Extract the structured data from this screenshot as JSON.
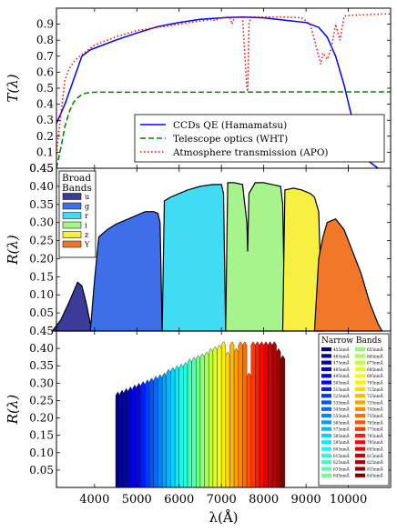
{
  "chart_data": [
    {
      "type": "line",
      "ylabel": "T(λ)",
      "yticks": [
        "0.1",
        "0.2",
        "0.3",
        "0.4",
        "0.5",
        "0.6",
        "0.7",
        "0.8",
        "0.9"
      ],
      "ylim": [
        0,
        1.0
      ],
      "xlim": [
        3100,
        11000
      ],
      "legend": "bottom-right",
      "series": [
        {
          "name": "CCDs QE (Hamamatsu)",
          "color": "#0000ff",
          "style": "solid",
          "x": [
            3100,
            3300,
            3500,
            3700,
            3900,
            4200,
            4500,
            5000,
            5500,
            6000,
            6500,
            7000,
            7500,
            8000,
            8500,
            9000,
            9300,
            9500,
            9700,
            9900,
            10100,
            10300,
            10500,
            10700
          ],
          "y": [
            0.28,
            0.4,
            0.55,
            0.7,
            0.74,
            0.77,
            0.8,
            0.845,
            0.885,
            0.91,
            0.93,
            0.94,
            0.945,
            0.94,
            0.925,
            0.91,
            0.88,
            0.82,
            0.7,
            0.52,
            0.3,
            0.13,
            0.04,
            0.0
          ]
        },
        {
          "name": "Telescope optics (WHT)",
          "color": "#008000",
          "style": "dashed",
          "x": [
            3100,
            3200,
            3300,
            3400,
            3500,
            3600,
            3700,
            3800,
            4000,
            5000,
            6000,
            7000,
            8000,
            9000,
            10000,
            11000
          ],
          "y": [
            0.0,
            0.12,
            0.26,
            0.35,
            0.41,
            0.44,
            0.46,
            0.47,
            0.475,
            0.475,
            0.475,
            0.475,
            0.476,
            0.477,
            0.477,
            0.477
          ]
        },
        {
          "name": "Atmosphere transmission (APO)",
          "color": "#ff0000",
          "style": "dotted",
          "x": [
            3100,
            3200,
            3300,
            3400,
            3500,
            3600,
            3800,
            4000,
            4500,
            5000,
            5500,
            6000,
            6500,
            6800,
            6860,
            6900,
            7000,
            7200,
            7250,
            7300,
            7500,
            7600,
            7620,
            7650,
            7700,
            8000,
            8500,
            8900,
            9100,
            9200,
            9300,
            9350,
            9400,
            9500,
            9600,
            9700,
            9800,
            9900,
            10000,
            10500,
            11000
          ],
          "y": [
            0.09,
            0.33,
            0.55,
            0.62,
            0.66,
            0.69,
            0.73,
            0.77,
            0.82,
            0.86,
            0.88,
            0.9,
            0.92,
            0.93,
            0.92,
            0.93,
            0.94,
            0.945,
            0.9,
            0.94,
            0.945,
            0.5,
            0.48,
            0.9,
            0.945,
            0.945,
            0.945,
            0.94,
            0.9,
            0.8,
            0.7,
            0.65,
            0.72,
            0.68,
            0.75,
            0.9,
            0.8,
            0.95,
            0.955,
            0.96,
            0.965
          ]
        }
      ]
    },
    {
      "type": "area",
      "ylabel": "R(λ)",
      "yticks": [
        "0.05",
        "0.10",
        "0.15",
        "0.20",
        "0.25",
        "0.30",
        "0.35",
        "0.40",
        "0.45"
      ],
      "ylim": [
        0,
        0.45
      ],
      "xlim": [
        3100,
        11000
      ],
      "legend_title": [
        "Broad",
        "Bands"
      ],
      "legend": "top-left",
      "series": [
        {
          "name": "u",
          "color": "#3b3b99",
          "x": [
            3000,
            3200,
            3400,
            3600,
            3700,
            3800,
            3900,
            4000
          ],
          "y": [
            0.0,
            0.03,
            0.08,
            0.135,
            0.125,
            0.08,
            0.02,
            0.0
          ]
        },
        {
          "name": "g",
          "color": "#3f6fe8",
          "x": [
            3900,
            4000,
            4100,
            4300,
            4500,
            4800,
            5000,
            5200,
            5400,
            5500,
            5550,
            5600
          ],
          "y": [
            0.0,
            0.14,
            0.26,
            0.28,
            0.295,
            0.31,
            0.32,
            0.33,
            0.33,
            0.325,
            0.3,
            0.0
          ]
        },
        {
          "name": "r",
          "color": "#40dcf4",
          "x": [
            5600,
            5650,
            5800,
            6000,
            6200,
            6500,
            6800,
            7000,
            7050,
            7100
          ],
          "y": [
            0.0,
            0.36,
            0.37,
            0.38,
            0.39,
            0.4,
            0.405,
            0.405,
            0.38,
            0.0
          ]
        },
        {
          "name": "i",
          "color": "#a8f48c",
          "x": [
            7100,
            7150,
            7300,
            7500,
            7600,
            7620,
            7650,
            7800,
            8000,
            8200,
            8400,
            8450,
            8500
          ],
          "y": [
            0.0,
            0.41,
            0.41,
            0.405,
            0.3,
            0.22,
            0.38,
            0.41,
            0.41,
            0.405,
            0.4,
            0.35,
            0.0
          ]
        },
        {
          "name": "z",
          "color": "#f8f040",
          "x": [
            8450,
            8500,
            8700,
            8900,
            9100,
            9200,
            9300,
            9350,
            9400
          ],
          "y": [
            0.0,
            0.39,
            0.395,
            0.39,
            0.38,
            0.37,
            0.33,
            0.15,
            0.0
          ]
        },
        {
          "name": "Y",
          "color": "#f07828",
          "x": [
            9200,
            9300,
            9400,
            9500,
            9700,
            9900,
            10100,
            10300,
            10500,
            10700,
            10800
          ],
          "y": [
            0.0,
            0.2,
            0.26,
            0.3,
            0.31,
            0.28,
            0.22,
            0.16,
            0.08,
            0.02,
            0.0
          ]
        }
      ]
    },
    {
      "type": "area",
      "ylabel": "R(λ)",
      "yticks": [
        "0.05",
        "0.10",
        "0.15",
        "0.20",
        "0.25",
        "0.30",
        "0.35",
        "0.40"
      ],
      "ylim": [
        0,
        0.45
      ],
      "xlim": [
        3100,
        11000
      ],
      "xlabel": "λ(Å)",
      "xticks": [
        "4000",
        "5000",
        "6000",
        "7000",
        "8000",
        "9000",
        "10000"
      ],
      "xtick_values": [
        4000,
        5000,
        6000,
        7000,
        8000,
        9000,
        10000
      ],
      "legend_title": "Narrow Bands",
      "legend": "top-right",
      "band_centers": [
        4550,
        4650,
        4750,
        4850,
        4950,
        5050,
        5150,
        5250,
        5350,
        5450,
        5550,
        5650,
        5750,
        5850,
        5950,
        6050,
        6150,
        6250,
        6350,
        6450,
        6550,
        6650,
        6750,
        6850,
        6950,
        7050,
        7150,
        7250,
        7350,
        7450,
        7550,
        7650,
        7750,
        7850,
        7950,
        8050,
        8150,
        8250,
        8350,
        8450
      ],
      "band_tops": [
        0.275,
        0.28,
        0.285,
        0.29,
        0.295,
        0.3,
        0.305,
        0.31,
        0.315,
        0.32,
        0.325,
        0.33,
        0.34,
        0.345,
        0.35,
        0.355,
        0.36,
        0.37,
        0.375,
        0.38,
        0.385,
        0.39,
        0.4,
        0.405,
        0.41,
        0.42,
        0.39,
        0.42,
        0.4,
        0.42,
        0.42,
        0.33,
        0.42,
        0.42,
        0.42,
        0.42,
        0.42,
        0.42,
        0.4,
        0.38
      ],
      "legend_labels": [
        "455nmÅ",
        "465nmÅ",
        "475nmÅ",
        "485nmÅ",
        "495nmÅ",
        "505nmÅ",
        "515nmÅ",
        "525nmÅ",
        "535nmÅ",
        "545nmÅ",
        "555nmÅ",
        "565nmÅ",
        "575nmÅ",
        "585nmÅ",
        "595nmÅ",
        "605nmÅ",
        "615nmÅ",
        "625nmÅ",
        "635nmÅ",
        "645nmÅ",
        "655nmÅ",
        "665nmÅ",
        "675nmÅ",
        "685nmÅ",
        "695nmÅ",
        "705nmÅ",
        "715nmÅ",
        "725nmÅ",
        "735nmÅ",
        "745nmÅ",
        "755nmÅ",
        "765nmÅ",
        "775nmÅ",
        "785nmÅ",
        "795nmÅ",
        "805nmÅ",
        "815nmÅ",
        "825nmÅ",
        "835nmÅ",
        "845nmÅ"
      ]
    }
  ]
}
